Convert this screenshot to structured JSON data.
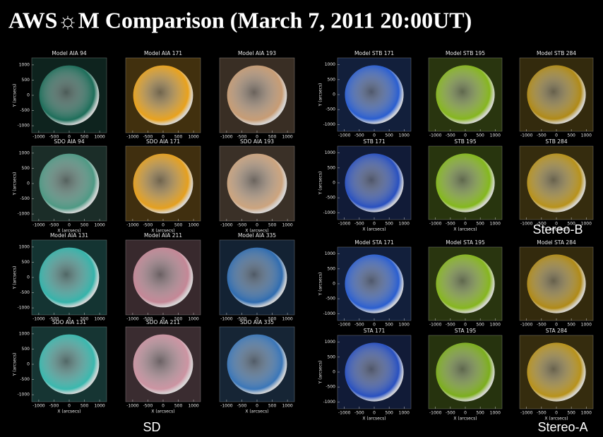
{
  "title": "AWS☼M Comparison (March 7, 2011 20:00UT)",
  "axes": {
    "xlabel": "X (arcsecs)",
    "ylabel": "Y (arcsecs)",
    "xlim": [
      -1230,
      1230
    ],
    "ylim": [
      -1230,
      1230
    ],
    "xticks": [
      -1000,
      -500,
      0,
      500,
      1000
    ],
    "yticks": [
      -1000,
      -500,
      0,
      500,
      1000
    ]
  },
  "groups": [
    {
      "label": "SD",
      "panels": [
        [
          {
            "title": "Model AIA 94",
            "color": "#1d6e5a"
          },
          {
            "title": "Model AIA 171",
            "color": "#e9a21c"
          },
          {
            "title": "Model AIA 193",
            "color": "#c79c74"
          }
        ],
        [
          {
            "title": "SDO AIA 94",
            "color": "#4e9984"
          },
          {
            "title": "SDO AIA 171",
            "color": "#e5a01e"
          },
          {
            "title": "SDO AIA 193",
            "color": "#cca47e"
          }
        ],
        [
          {
            "title": "Model AIA 131",
            "color": "#35b3aa"
          },
          {
            "title": "Model AIA 211",
            "color": "#c48796"
          },
          {
            "title": "Model AIA 335",
            "color": "#2f6cb0"
          }
        ],
        [
          {
            "title": "SDO AIA 131",
            "color": "#3ab8ae"
          },
          {
            "title": "SDO AIA 211",
            "color": "#cc94a2"
          },
          {
            "title": "SDO AIA 335",
            "color": "#3a76b8"
          }
        ]
      ]
    },
    {
      "label": "Stereo-B",
      "panels": [
        [
          {
            "title": "Model STB 171",
            "color": "#2a5ed0"
          },
          {
            "title": "Model STB 195",
            "color": "#86b61e"
          },
          {
            "title": "Model STB 284",
            "color": "#b08a16"
          }
        ],
        [
          {
            "title": "STB 171",
            "color": "#2850c0"
          },
          {
            "title": "STB 195",
            "color": "#84b81c"
          },
          {
            "title": "STB 284",
            "color": "#b8921a"
          }
        ]
      ]
    },
    {
      "label": "Stereo-A",
      "panels": [
        [
          {
            "title": "Model STA 171",
            "color": "#2a5ed0"
          },
          {
            "title": "Model STA 195",
            "color": "#86b61e"
          },
          {
            "title": "Model STA 284",
            "color": "#b08a16"
          }
        ],
        [
          {
            "title": "STA 171",
            "color": "#2850c0"
          },
          {
            "title": "STA 195",
            "color": "#7cae1c"
          },
          {
            "title": "STA 284",
            "color": "#b8921a"
          }
        ]
      ]
    }
  ]
}
